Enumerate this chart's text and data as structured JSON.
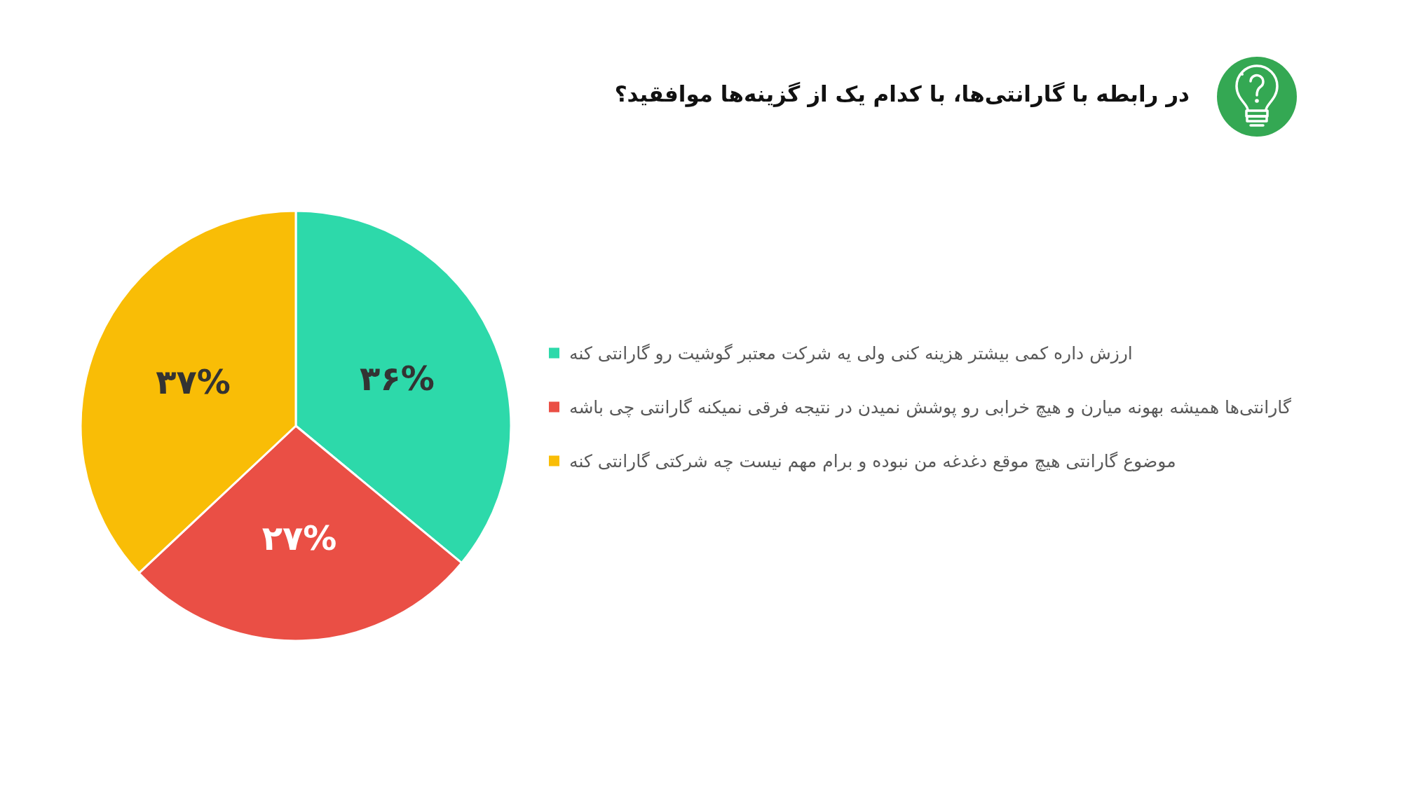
{
  "chart_data": {
    "type": "pie",
    "title": "در رابطه با گارانتی‌ها، با کدام یک از گزینه‌ها موافقید؟",
    "categories": [
      "ارزش داره کمی بیشتر هزینه کنی ولی یه شرکت معتبر گوشیت رو گارانتی کنه",
      "گارانتی‌ها همیشه بهونه میارن و هیچ خرابی رو پوشش نمیدن در نتیجه فرقی نمیکنه گارانتی چی باشه",
      "موضوع گارانتی هیچ موقع دغدغه من نبوده و برام مهم نیست چه شرکتی گارانتی کنه"
    ],
    "values": [
      36,
      27,
      37
    ],
    "colors": [
      "#2dd9aa",
      "#ea4f45",
      "#f9bd06"
    ],
    "value_labels": [
      "۳۶%",
      "۲۷%",
      "۳۷%"
    ],
    "legend": "right"
  }
}
